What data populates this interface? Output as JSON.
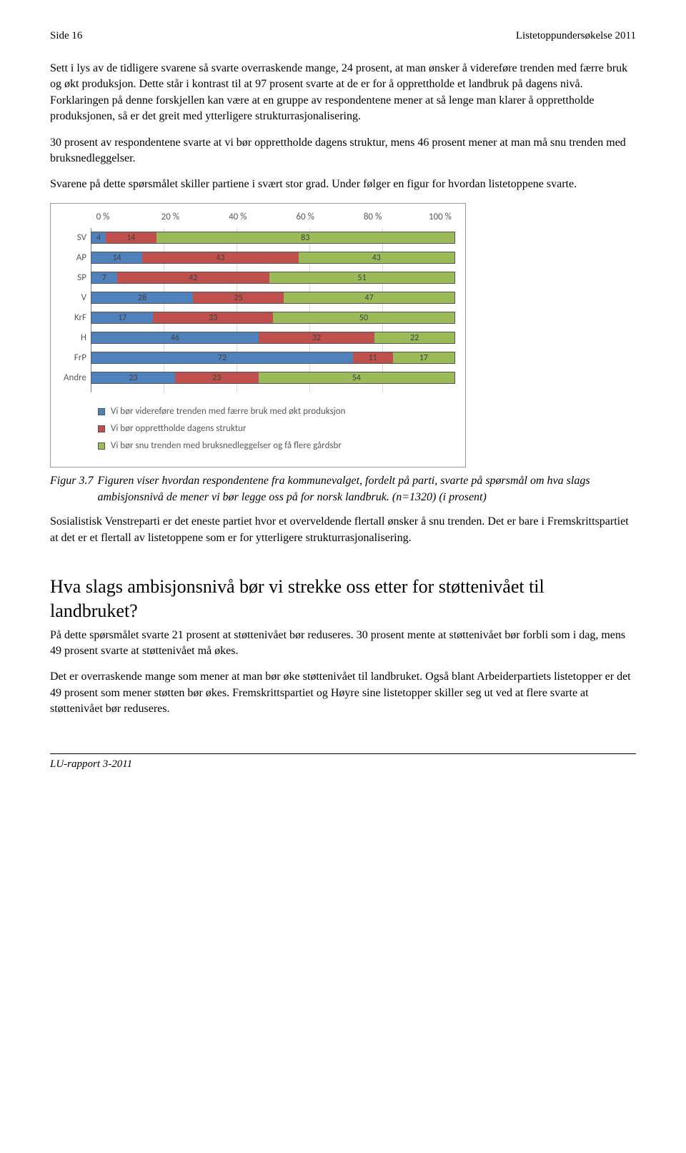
{
  "header": {
    "left": "Side 16",
    "right": "Listetoppundersøkelse 2011"
  },
  "paragraphs": {
    "p1": "Sett i lys av de tidligere svarene så svarte overraskende mange, 24 prosent, at man ønsker å videreføre trenden med færre bruk og økt produksjon. Dette står i kontrast til at 97 prosent svarte at de er for å opprettholde et landbruk på dagens nivå. Forklaringen på denne forskjellen kan være at en gruppe av respondentene mener at så lenge man klarer å opprettholde produksjonen, så er det greit med ytterligere strukturrasjonalisering.",
    "p2": "30 prosent av respondentene svarte at vi bør opprettholde dagens struktur, mens 46 prosent mener at man må snu trenden med bruksnedleggelser.",
    "p3": "Svarene på dette spørsmålet skiller partiene i svært stor grad. Under følger en figur for hvordan listetoppene svarte.",
    "p4": "Sosialistisk Venstreparti er det eneste partiet hvor et overveldende flertall ønsker å snu trenden. Det er bare i Fremskrittspartiet at det er et flertall av listetoppene som er for ytterligere strukturrasjonalisering.",
    "p5": "På dette spørsmålet svarte 21 prosent at støttenivået bør reduseres. 30 prosent mente at støttenivået bør forbli som i dag, mens 49 prosent svarte at støttenivået må økes.",
    "p6": "Det er overraskende mange som mener at man bør øke støttenivået til landbruket. Også blant Arbeiderpartiets listetopper er det 49 prosent som mener støtten bør økes. Fremskrittspartiet og Høyre sine listetopper skiller seg ut ved at flere svarte at støttenivået bør reduseres."
  },
  "figure": {
    "label": "Figur 3.7",
    "caption": "Figuren viser hvordan respondentene fra kommunevalget, fordelt på parti, svarte på spørsmål om hva slags ambisjonsnivå de mener vi bør legge oss på for norsk landbruk. (n=1320) (i prosent)"
  },
  "heading": "Hva slags ambisjonsnivå bør vi strekke oss etter for støttenivået til landbruket?",
  "footer": "LU-rapport 3-2011",
  "chart": {
    "type": "stacked-bar-horizontal",
    "xaxis": [
      "0 %",
      "20 %",
      "40 %",
      "60 %",
      "80 %",
      "100 %"
    ],
    "xlim": [
      0,
      100
    ],
    "categories": [
      "SV",
      "AP",
      "SP",
      "V",
      "KrF",
      "H",
      "FrP",
      "Andre"
    ],
    "series_colors": [
      "#4f81bd",
      "#c0504d",
      "#9bbb59"
    ],
    "value_text_color": "#404040",
    "grid_color": "#d9d9d9",
    "axis_color": "#808080",
    "font_family": "Calibri",
    "data": [
      [
        4,
        14,
        83
      ],
      [
        14,
        43,
        43
      ],
      [
        7,
        42,
        51
      ],
      [
        28,
        25,
        47
      ],
      [
        17,
        33,
        50
      ],
      [
        46,
        32,
        22
      ],
      [
        72,
        11,
        17
      ],
      [
        23,
        23,
        54
      ]
    ],
    "legend": [
      "Vi bør videreføre trenden med færre bruk med økt produksjon",
      "Vi bør opprettholde dagens struktur",
      "Vi bør snu trenden med bruksnedleggelser og få flere gårdsbr"
    ]
  }
}
